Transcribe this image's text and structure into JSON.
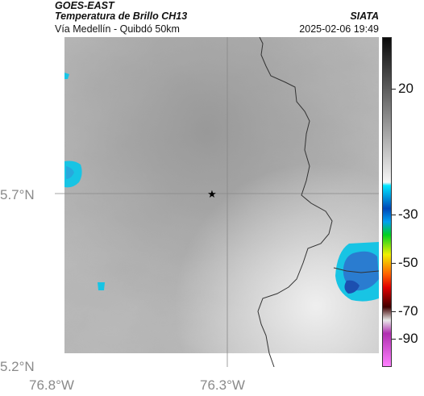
{
  "header": {
    "satellite": "GOES-EAST",
    "product": "Temperatura de Brillo CH13",
    "org": "SIATA",
    "route": "Vía Medellín - Quibdó 50km",
    "datetime": "2025-02-06 19:49"
  },
  "axes": {
    "lat_labels": [
      "5.7°N",
      "5.2°N"
    ],
    "lon_labels": [
      "76.8°W",
      "76.3°W"
    ]
  },
  "colorbar": {
    "labels": [
      "20",
      "-30",
      "-50",
      "-70",
      "-90"
    ]
  },
  "map": {
    "marker": "star-icon",
    "colors": {
      "cloud_gray": "#9a9a9a",
      "cold_cyan": "#00d0e8",
      "cold_blue": "#1060c0",
      "gridline": "#888888",
      "border": "#333333"
    }
  }
}
